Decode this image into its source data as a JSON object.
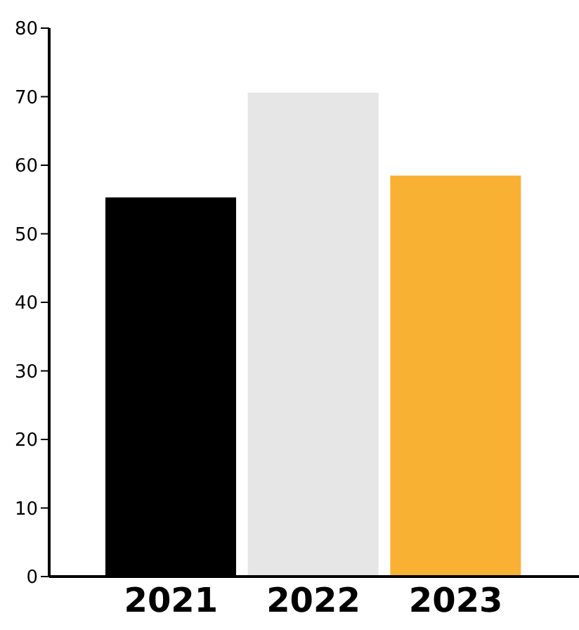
{
  "chart_data": {
    "type": "bar",
    "categories": [
      "2021",
      "2022",
      "2023"
    ],
    "values": [
      55.3,
      70.6,
      58.5
    ],
    "colors": [
      "#000000",
      "#e6e6e6",
      "#f8b133"
    ],
    "ylim": [
      0,
      80
    ],
    "yticks": [
      0,
      10,
      20,
      30,
      40,
      50,
      60,
      70,
      80
    ],
    "grid": false
  }
}
